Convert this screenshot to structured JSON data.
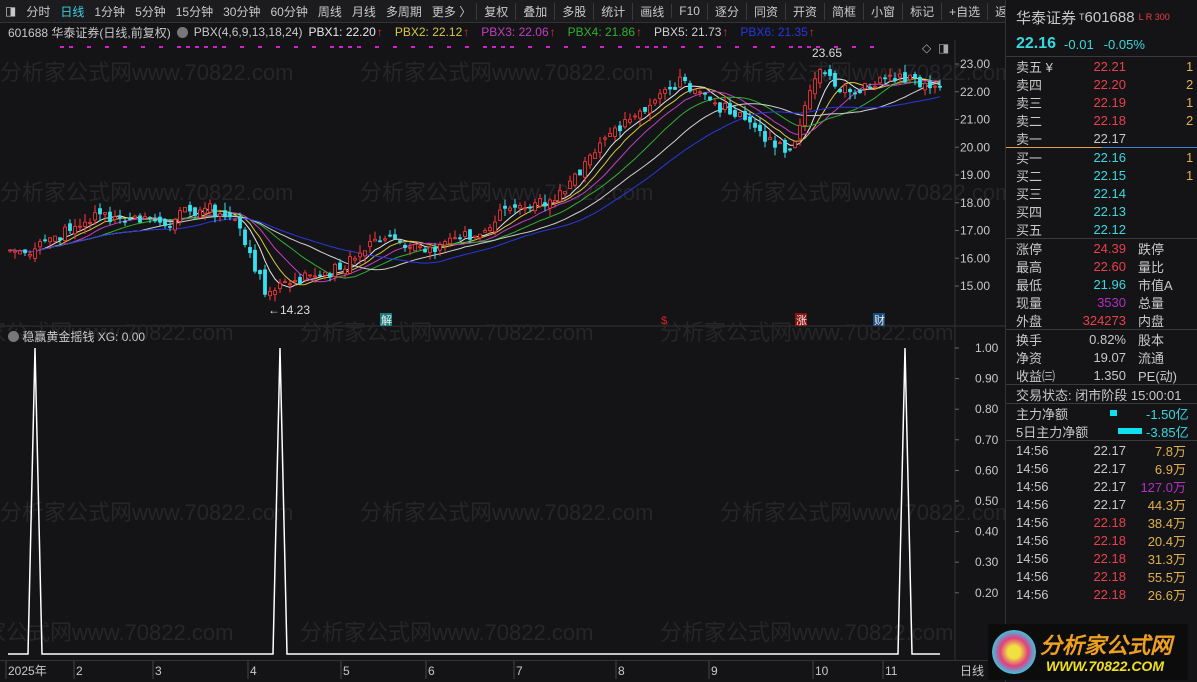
{
  "toolbar": {
    "periods": [
      "分时",
      "日线",
      "1分钟",
      "5分钟",
      "15分钟",
      "30分钟",
      "60分钟",
      "周线",
      "月线",
      "多周期",
      "更多 〉"
    ],
    "selected": "日线",
    "buttons": [
      "复权",
      "叠加",
      "多股",
      "统计",
      "画线",
      "F10",
      "逐分",
      "同资",
      "开资",
      "简框",
      "小窗",
      "标记",
      "+自选",
      "返回"
    ]
  },
  "info": {
    "title": "601688 华泰证券(日线,前复权)",
    "indicator": "PBX(4,6,9,13,18,24)",
    "pbx": [
      {
        "label": "PBX1: 22.20",
        "color": "#e8e8e8"
      },
      {
        "label": "PBX2: 22.12",
        "color": "#d8c840"
      },
      {
        "label": "PBX3: 22.06",
        "color": "#c040c0"
      },
      {
        "label": "PBX4: 21.86",
        "color": "#30b030"
      },
      {
        "label": "PBX5: 21.73",
        "color": "#d0d0d0"
      },
      {
        "label": "PBX6: 21.35",
        "color": "#2838e0"
      }
    ],
    "up_arrow": "↑"
  },
  "indicator_panel": {
    "title": "稳赢黄金摇钱",
    "value": "XG: 0.00"
  },
  "watermark": "分析家公式网www.70822.com",
  "chart_data": [
    {
      "type": "candlestick",
      "title": "601688 华泰证券(日线,前复权)",
      "y_ticks": [
        "23.00",
        "22.00",
        "21.00",
        "20.00",
        "19.00",
        "18.00",
        "17.00",
        "16.00",
        "15.00"
      ],
      "ylim": [
        14.0,
        23.9
      ],
      "closes": [
        16.3,
        16.2,
        16.6,
        16.8,
        17.0,
        17.3,
        17.6,
        17.5,
        17.4,
        17.5,
        17.3,
        17.4,
        17.7,
        17.8,
        17.6,
        17.4,
        16.2,
        14.7,
        15.1,
        15.2,
        15.4,
        15.5,
        15.6,
        16.0,
        16.6,
        16.7,
        16.6,
        16.5,
        16.4,
        16.6,
        16.7,
        16.8,
        17.1,
        17.8,
        17.9,
        18.0,
        18.1,
        18.4,
        19.0,
        19.8,
        20.5,
        21.0,
        21.3,
        21.7,
        22.1,
        22.4,
        22.0,
        21.6,
        21.2,
        21.0,
        20.6,
        20.0,
        19.9,
        21.5,
        22.8,
        22.2,
        22.0,
        22.3,
        22.5,
        22.4,
        22.6,
        22.3,
        22.16
      ],
      "high_label": "23.65",
      "low_label": "←14.23",
      "events": [
        {
          "label": "解",
          "color": "#1a7a7a"
        },
        {
          "label": "$",
          "color": "#e02020"
        },
        {
          "label": "涨",
          "color": "#8a1010"
        },
        {
          "label": "财",
          "color": "#1a4a7a"
        }
      ],
      "ma_colors": [
        "#e8e8e8",
        "#d8c840",
        "#c040c0",
        "#30b030",
        "#d0d0d0",
        "#2838e0"
      ]
    },
    {
      "type": "line",
      "series": [
        {
          "name": "XG",
          "spikes": [
            35,
            280,
            905
          ]
        }
      ],
      "y_ticks": [
        "1.00",
        "0.90",
        "0.80",
        "0.70",
        "0.60",
        "0.50",
        "0.40",
        "0.30",
        "0.20"
      ],
      "ylim": [
        0,
        1
      ]
    }
  ],
  "date_axis": [
    "2025年",
    "2",
    "3",
    "4",
    "5",
    "6",
    "7",
    "8",
    "9",
    "10",
    "11"
  ],
  "date_axis_right": "日线",
  "quote": {
    "name": "华泰证券",
    "code": "601688",
    "tag": "T",
    "badges": "L R 300",
    "price": "22.16",
    "change": "-0.01",
    "pct": "-0.05%",
    "asks": [
      [
        "卖五 ¥",
        "22.21",
        "1"
      ],
      [
        "卖四",
        "22.20",
        "2"
      ],
      [
        "卖三",
        "22.19",
        "1"
      ],
      [
        "卖二",
        "22.18",
        "2"
      ],
      [
        "卖一",
        "22.17",
        ""
      ]
    ],
    "bids": [
      [
        "买一",
        "22.16",
        "1"
      ],
      [
        "买二",
        "22.15",
        "1"
      ],
      [
        "买三",
        "22.14",
        ""
      ],
      [
        "买四",
        "22.13",
        ""
      ],
      [
        "买五",
        "22.12",
        ""
      ]
    ],
    "stats": [
      [
        "涨停",
        "24.39",
        "跌停"
      ],
      [
        "最高",
        "22.60",
        "量比"
      ],
      [
        "最低",
        "21.96",
        "市值A"
      ],
      [
        "现量",
        "3530",
        "总量"
      ],
      [
        "外盘",
        "324273",
        "内盘"
      ]
    ],
    "stats2": [
      [
        "换手",
        "0.82%",
        "股本"
      ],
      [
        "净资",
        "19.07",
        "流通"
      ],
      [
        "收益㈢",
        "1.350",
        "PE(动)"
      ]
    ],
    "status": "交易状态: 闭市阶段 15:00:01",
    "flow": [
      [
        "主力净额",
        "-1.50亿"
      ],
      [
        "5日主力净额",
        "-3.85亿"
      ]
    ],
    "ticks": [
      [
        "14:56",
        "22.17",
        "7.8万"
      ],
      [
        "14:56",
        "22.17",
        "6.9万"
      ],
      [
        "14:56",
        "22.17",
        "127.0万"
      ],
      [
        "14:56",
        "22.17",
        "44.3万"
      ],
      [
        "14:56",
        "22.18",
        "38.4万"
      ],
      [
        "14:56",
        "22.18",
        "20.4万"
      ],
      [
        "14:56",
        "22.18",
        "31.3万"
      ],
      [
        "14:56",
        "22.18",
        "55.5万"
      ],
      [
        "14:56",
        "22.18",
        "26.6万"
      ]
    ]
  },
  "logo": {
    "text": "分析家公式网",
    "url": "WWW.70822.COM"
  }
}
